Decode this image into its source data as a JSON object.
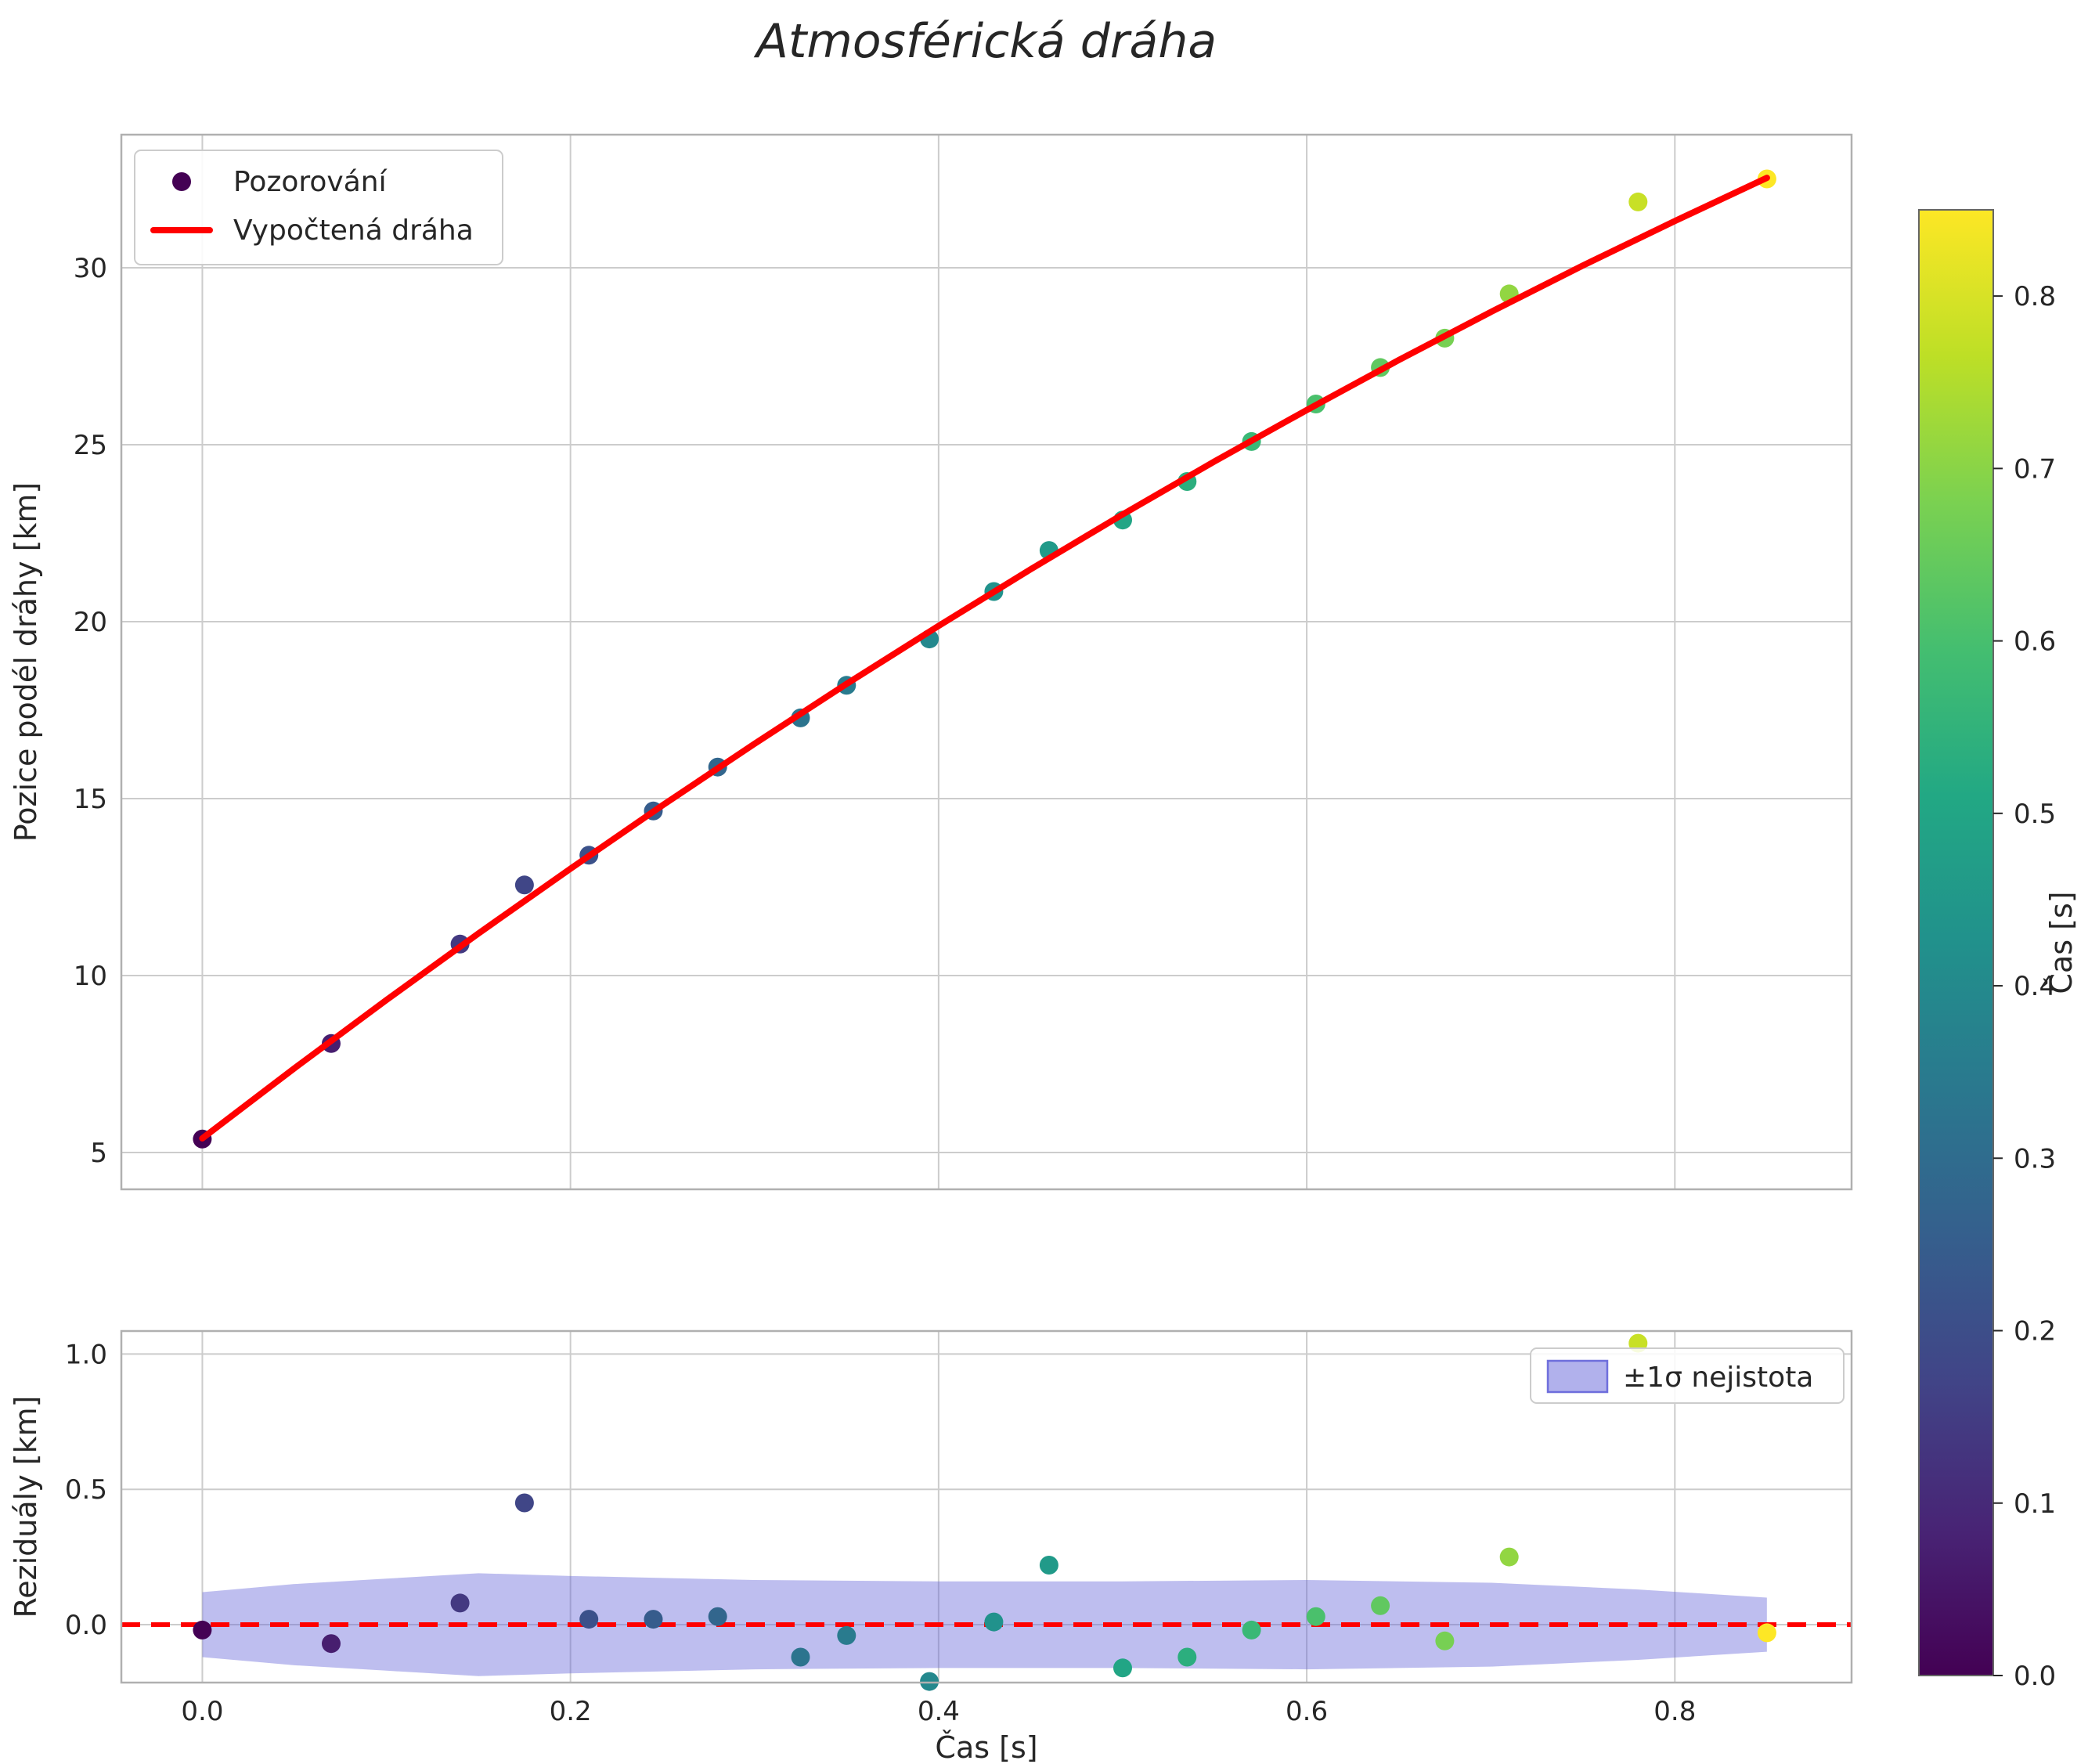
{
  "title": "Atmosférická dráha",
  "colors": {
    "viridis_stops": [
      [
        68,
        1,
        84
      ],
      [
        72,
        36,
        117
      ],
      [
        65,
        68,
        135
      ],
      [
        53,
        95,
        141
      ],
      [
        42,
        120,
        142
      ],
      [
        33,
        145,
        140
      ],
      [
        34,
        168,
        132
      ],
      [
        68,
        190,
        112
      ],
      [
        122,
        209,
        81
      ],
      [
        189,
        223,
        38
      ],
      [
        253,
        231,
        37
      ]
    ],
    "curve": "#ff0000",
    "zero_line": "#ff0000",
    "grid": "#cccccc",
    "spine": "#b0b0b0",
    "text": "#262626",
    "band_fill": "#6363d9",
    "observation_dark": "#440154",
    "background": "#ffffff"
  },
  "chart_data": [
    {
      "type": "scatter",
      "panel": "trajectory",
      "title": "Atmosférická dráha",
      "xlabel": "",
      "ylabel": "Pozice podél dráhy [km]",
      "xlim": [
        -0.044,
        0.896
      ],
      "ylim": [
        3.96,
        33.76
      ],
      "grid": true,
      "xgrid": [
        0.0,
        0.2,
        0.4,
        0.6,
        0.8
      ],
      "yticks": [
        {
          "v": 5,
          "t": "5"
        },
        {
          "v": 10,
          "t": "10"
        },
        {
          "v": 15,
          "t": "15"
        },
        {
          "v": 20,
          "t": "20"
        },
        {
          "v": 25,
          "t": "25"
        },
        {
          "v": 30,
          "t": "30"
        }
      ],
      "legend": {
        "position": "upper left",
        "entries": [
          {
            "label": "Pozorování",
            "marker": "dot",
            "color": "#440154"
          },
          {
            "label": "Vypočtená dráha",
            "marker": "line",
            "color": "#ff0000"
          }
        ]
      },
      "series": [
        {
          "name": "Pozorování",
          "type": "scatter",
          "color_by": "Čas [s]",
          "x": [
            0.0,
            0.07,
            0.14,
            0.175,
            0.21,
            0.245,
            0.28,
            0.325,
            0.35,
            0.395,
            0.43,
            0.46,
            0.5,
            0.535,
            0.57,
            0.605,
            0.64,
            0.675,
            0.71,
            0.78,
            0.85
          ],
          "y": [
            5.38,
            8.08,
            10.89,
            12.56,
            13.4,
            14.65,
            15.89,
            17.28,
            18.2,
            19.51,
            20.85,
            22.01,
            22.87,
            23.96,
            25.09,
            26.15,
            27.18,
            28.01,
            29.26,
            31.86,
            32.51
          ]
        },
        {
          "name": "Vypočtená dráha",
          "type": "line",
          "color": "#ff0000",
          "x": [
            0.0,
            0.05,
            0.1,
            0.15,
            0.2,
            0.25,
            0.3,
            0.35,
            0.4,
            0.45,
            0.5,
            0.55,
            0.6,
            0.65,
            0.7,
            0.75,
            0.8,
            0.85
          ],
          "y": [
            5.4,
            7.38,
            9.31,
            11.19,
            13.02,
            14.81,
            16.55,
            18.24,
            19.88,
            21.48,
            23.03,
            24.53,
            25.98,
            27.39,
            28.75,
            30.06,
            31.32,
            32.54
          ]
        }
      ]
    },
    {
      "type": "scatter",
      "panel": "residuals",
      "xlabel": "Čas [s]",
      "ylabel": "Reziduály [km]",
      "xlim": [
        -0.044,
        0.896
      ],
      "ylim": [
        -0.214,
        1.085
      ],
      "grid": true,
      "xgrid": [
        0.0,
        0.2,
        0.4,
        0.6,
        0.8
      ],
      "xticks": [
        {
          "v": 0.0,
          "t": "0.0"
        },
        {
          "v": 0.2,
          "t": "0.2"
        },
        {
          "v": 0.4,
          "t": "0.4"
        },
        {
          "v": 0.6,
          "t": "0.6"
        },
        {
          "v": 0.8,
          "t": "0.8"
        }
      ],
      "yticks": [
        {
          "v": 0.0,
          "t": "0.0"
        },
        {
          "v": 0.5,
          "t": "0.5"
        },
        {
          "v": 1.0,
          "t": "1.0"
        }
      ],
      "zero_line": {
        "y": 0.0,
        "color": "#ff0000",
        "style": "dashed"
      },
      "band": {
        "label": "±1σ nejistota",
        "x": [
          0.0,
          0.05,
          0.1,
          0.15,
          0.2,
          0.3,
          0.4,
          0.5,
          0.6,
          0.7,
          0.78,
          0.85
        ],
        "half_width": [
          0.12,
          0.15,
          0.17,
          0.19,
          0.18,
          0.165,
          0.16,
          0.16,
          0.165,
          0.155,
          0.13,
          0.1
        ]
      },
      "series": [
        {
          "name": "Reziduály",
          "type": "scatter",
          "color_by": "Čas [s]",
          "x": [
            0.0,
            0.07,
            0.14,
            0.175,
            0.21,
            0.245,
            0.28,
            0.325,
            0.35,
            0.395,
            0.43,
            0.46,
            0.5,
            0.535,
            0.57,
            0.605,
            0.64,
            0.675,
            0.71,
            0.78,
            0.85
          ],
          "y": [
            -0.02,
            -0.07,
            0.08,
            0.45,
            0.02,
            0.02,
            0.03,
            -0.12,
            -0.04,
            -0.21,
            0.01,
            0.22,
            -0.16,
            -0.12,
            -0.02,
            0.03,
            0.07,
            -0.06,
            0.25,
            1.04,
            -0.03
          ]
        }
      ]
    }
  ],
  "colorbar": {
    "label": "Čas [s]",
    "colormap": "viridis",
    "vmin": 0.0,
    "vmax": 0.85,
    "ticks": [
      {
        "v": 0.0,
        "t": "0.0"
      },
      {
        "v": 0.1,
        "t": "0.1"
      },
      {
        "v": 0.2,
        "t": "0.2"
      },
      {
        "v": 0.3,
        "t": "0.3"
      },
      {
        "v": 0.4,
        "t": "0.4"
      },
      {
        "v": 0.5,
        "t": "0.5"
      },
      {
        "v": 0.6,
        "t": "0.6"
      },
      {
        "v": 0.7,
        "t": "0.7"
      },
      {
        "v": 0.8,
        "t": "0.8"
      }
    ]
  }
}
